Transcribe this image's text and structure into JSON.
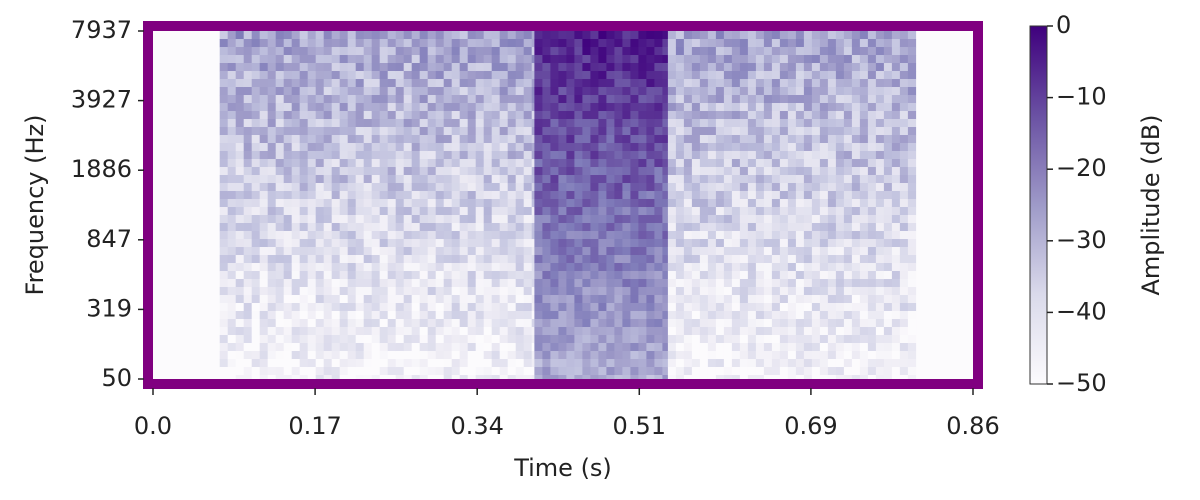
{
  "chart_data": {
    "type": "heatmap",
    "title": "",
    "xlabel": "Time (s)",
    "ylabel": "Frequency (Hz)",
    "x_ticks": [
      "0.0",
      "0.17",
      "0.34",
      "0.51",
      "0.69",
      "0.86"
    ],
    "x_tick_values": [
      0.0,
      0.17,
      0.34,
      0.51,
      0.69,
      0.86
    ],
    "xlim": [
      0.0,
      0.86
    ],
    "y_scale": "log",
    "y_ticks": [
      "50",
      "319",
      "847",
      "1886",
      "3927",
      "7937"
    ],
    "y_tick_values": [
      50,
      319,
      847,
      1886,
      3927,
      7937
    ],
    "ylim": [
      50,
      7937
    ],
    "colorbar": {
      "label": "Amplitude (dB)",
      "ticks": [
        "0",
        "−10",
        "−20",
        "−30",
        "−40",
        "−50"
      ],
      "tick_values": [
        0,
        -10,
        -20,
        -30,
        -40,
        -50
      ],
      "range": [
        -50,
        0
      ],
      "colormap": "Purples"
    },
    "frame_color": "#800080",
    "segments": [
      {
        "start": 0.07,
        "end": 0.4,
        "level": "moderate"
      },
      {
        "start": 0.4,
        "end": 0.54,
        "level": "high"
      },
      {
        "start": 0.54,
        "end": 0.8,
        "level": "moderate"
      }
    ],
    "grid": false
  }
}
